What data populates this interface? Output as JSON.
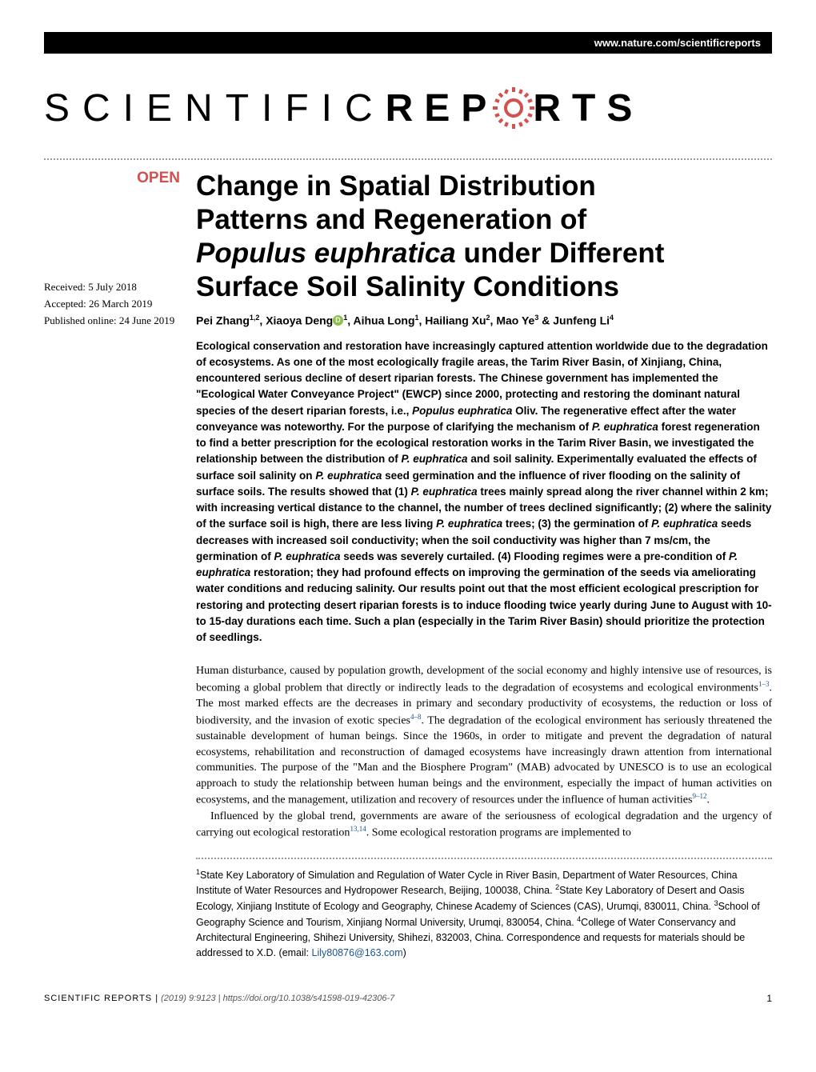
{
  "header": {
    "url": "www.nature.com/scientificreports"
  },
  "journal": {
    "name_part1": "SCIENTIFIC ",
    "name_part2_before": "REP",
    "name_part2_after": "RTS",
    "gear_color": "#d4504f"
  },
  "badge": {
    "open": "OPEN"
  },
  "dates": {
    "received": "Received: 5 July 2018",
    "accepted": "Accepted: 26 March 2019",
    "published": "Published online: 24 June 2019"
  },
  "article": {
    "title_line1": "Change in Spatial Distribution",
    "title_line2": "Patterns and Regeneration of",
    "title_species": "Populus euphratica",
    "title_line3_after": " under Different",
    "title_line4": "Surface Soil Salinity Conditions",
    "authors_html": "Pei Zhang<sup>1,2</sup>, Xiaoya Deng<span class='orcid-icon'></span><sup>1</sup>, Aihua Long<sup>1</sup>, Hailiang Xu<sup>2</sup>, Mao Ye<sup>3</sup> & Junfeng Li<sup>4</sup>"
  },
  "abstract": {
    "text": "Ecological conservation and restoration have increasingly captured attention worldwide due to the degradation of ecosystems. As one of the most ecologically fragile areas, the Tarim River Basin, of Xinjiang, China, encountered serious decline of desert riparian forests. The Chinese government has implemented the \"Ecological Water Conveyance Project\" (EWCP) since 2000, protecting and restoring the dominant natural species of the desert riparian forests, i.e., <span class='italic'>Populus euphratica</span> Oliv. The regenerative effect after the water conveyance was noteworthy. For the purpose of clarifying the mechanism of <span class='italic'>P. euphratica</span> forest regeneration to find a better prescription for the ecological restoration works in the Tarim River Basin, we investigated the relationship between the distribution of <span class='italic'>P. euphratica</span> and soil salinity. Experimentally evaluated the effects of surface soil salinity on <span class='italic'>P. euphratica</span> seed germination and the influence of river flooding on the salinity of surface soils. The results showed that (1) <span class='italic'>P. euphratica</span> trees mainly spread along the river channel within 2 km; with increasing vertical distance to the channel, the number of trees declined significantly; (2) where the salinity of the surface soil is high, there are less living <span class='italic'>P. euphratica</span> trees; (3) the germination of <span class='italic'>P. euphratica</span> seeds decreases with increased soil conductivity; when the soil conductivity was higher than 7 ms/cm, the germination of <span class='italic'>P. euphratica</span> seeds was severely curtailed. (4) Flooding regimes were a pre-condition of <span class='italic'>P. euphratica</span> restoration; they had profound effects on improving the germination of the seeds via ameliorating water conditions and reducing salinity. Our results point out that the most efficient ecological prescription for restoring and protecting desert riparian forests is to induce flooding twice yearly during June to August with 10- to 15-day durations each time. Such a plan (especially in the Tarim River Basin) should prioritize the protection of seedlings."
  },
  "body": {
    "para1": "Human disturbance, caused by population growth, development of the social economy and highly intensive use of resources, is becoming a global problem that directly or indirectly leads to the degradation of ecosystems and ecological environments<sup>1–3</sup>. The most marked effects are the decreases in primary and secondary productivity of ecosystems, the reduction or loss of biodiversity, and the invasion of exotic species<sup>4–8</sup>. The degradation of the ecological environment has seriously threatened the sustainable development of human beings. Since the 1960s, in order to mitigate and prevent the degradation of natural ecosystems, rehabilitation and reconstruction of damaged ecosystems have increasingly drawn attention from international communities. The purpose of the \"Man and the Biosphere Program\" (MAB) advocated by UNESCO is to use an ecological approach to study the relationship between human beings and the environment, especially the impact of human activities on ecosystems, and the management, utilization and recovery of resources under the influence of human activities<sup>9–12</sup>.",
    "para2": "Influenced by the global trend, governments are aware of the seriousness of ecological degradation and the urgency of carrying out ecological restoration<sup>13,14</sup>. Some ecological restoration programs are implemented to"
  },
  "affiliations": {
    "text": "<sup>1</sup>State Key Laboratory of Simulation and Regulation of Water Cycle in River Basin, Department of Water Resources, China Institute of Water Resources and Hydropower Research, Beijing, 100038, China. <sup>2</sup>State Key Laboratory of Desert and Oasis Ecology, Xinjiang Institute of Ecology and Geography, Chinese Academy of Sciences (CAS), Urumqi, 830011, China. <sup>3</sup>School of Geography Science and Tourism, Xinjiang Normal University, Urumqi, 830054, China. <sup>4</sup>College of Water Conservancy and Architectural Engineering, Shihezi University, Shihezi, 832003, China. Correspondence and requests for materials should be addressed to X.D. (email: <a href='#'>Lily80876@163.com</a>)"
  },
  "footer": {
    "journal": "SCIENTIFIC REPORTS |",
    "citation": "(2019) 9:9123 | https://doi.org/10.1038/s41598-019-42306-7",
    "page_number": "1"
  },
  "styling": {
    "background_color": "#ffffff",
    "text_color": "#000000",
    "accent_color": "#d4504f",
    "link_color": "#1a5490",
    "orcid_color": "#8cc04b",
    "header_bg": "#000000",
    "header_text": "#ffffff",
    "title_fontsize": 35,
    "body_fontsize": 14,
    "abstract_fontsize": 13.5,
    "authors_fontsize": 14,
    "affiliations_fontsize": 12.5,
    "footer_fontsize": 11,
    "dotted_color": "#999999"
  }
}
